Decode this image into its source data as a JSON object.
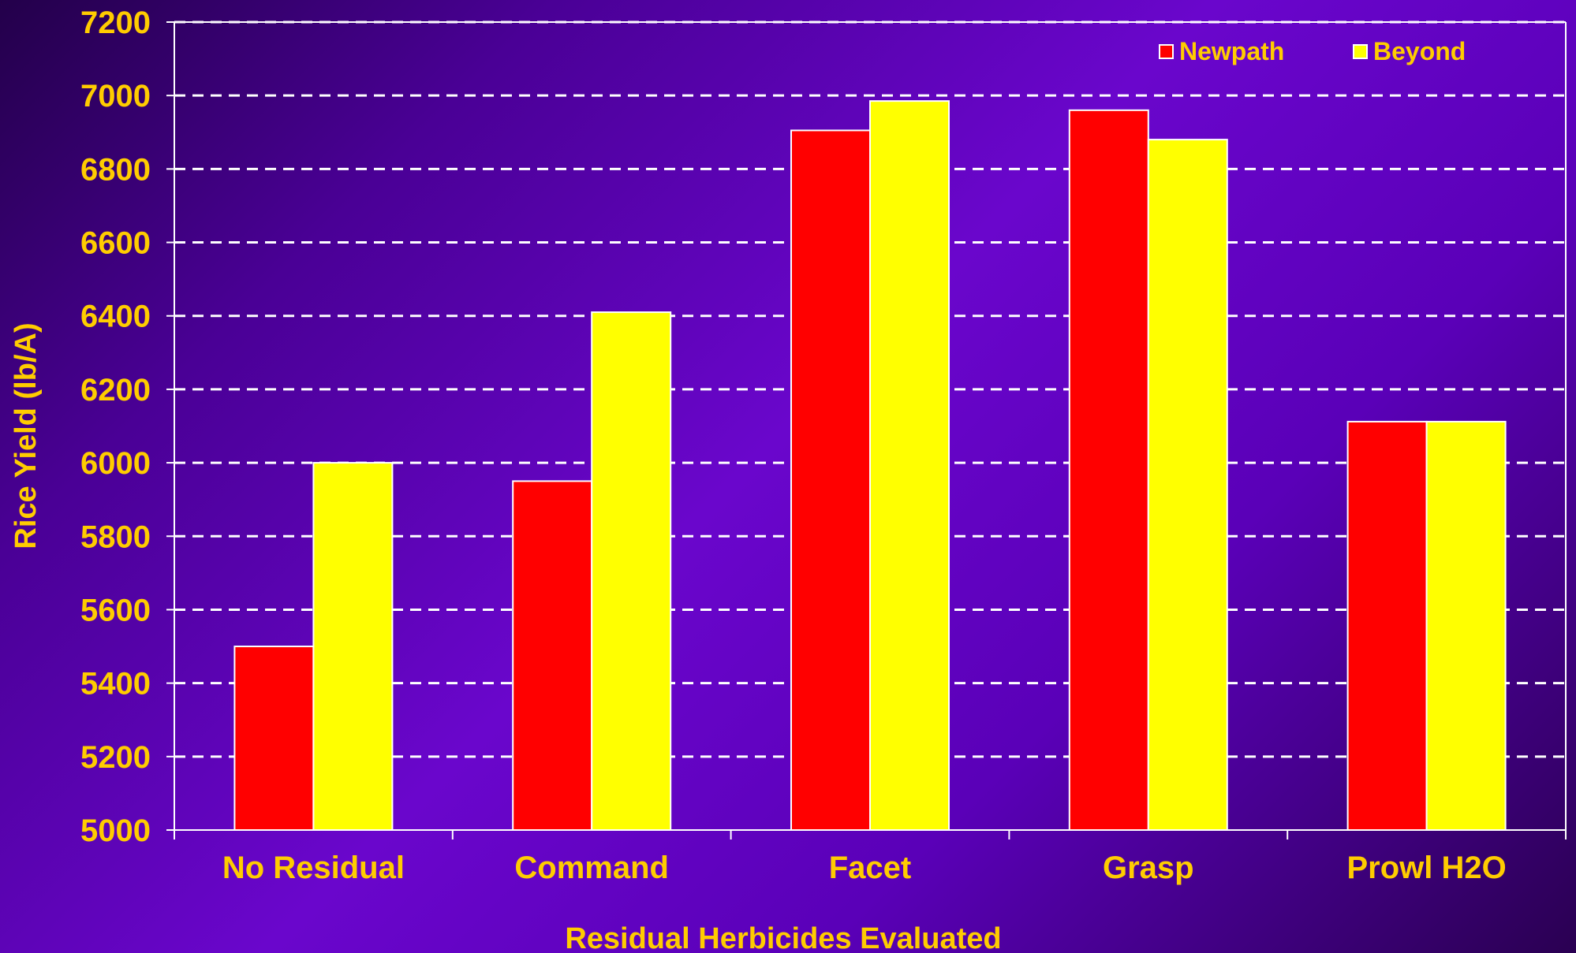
{
  "chart_data": {
    "type": "bar",
    "title": "",
    "xlabel": "Residual Herbicides Evaluated",
    "ylabel": "Rice Yield (lb/A)",
    "categories": [
      "No Residual",
      "Command",
      "Facet",
      "Grasp",
      "Prowl H2O"
    ],
    "series": [
      {
        "name": "Newpath",
        "color": "#ff0000",
        "values": [
          5500,
          5950,
          6905,
          6960,
          6112
        ]
      },
      {
        "name": "Beyond",
        "color": "#ffff00",
        "values": [
          6000,
          6410,
          6985,
          6880,
          6112
        ]
      }
    ],
    "ylim": [
      5000,
      7200
    ],
    "yticks": [
      5000,
      5200,
      5400,
      5600,
      5800,
      6000,
      6200,
      6400,
      6600,
      6800,
      7000,
      7200
    ],
    "grid": true,
    "legend": "top-right",
    "colors": {
      "text": "#ffcc00",
      "gridline": "#ffffff",
      "bar_outline": "#ffffff"
    }
  }
}
